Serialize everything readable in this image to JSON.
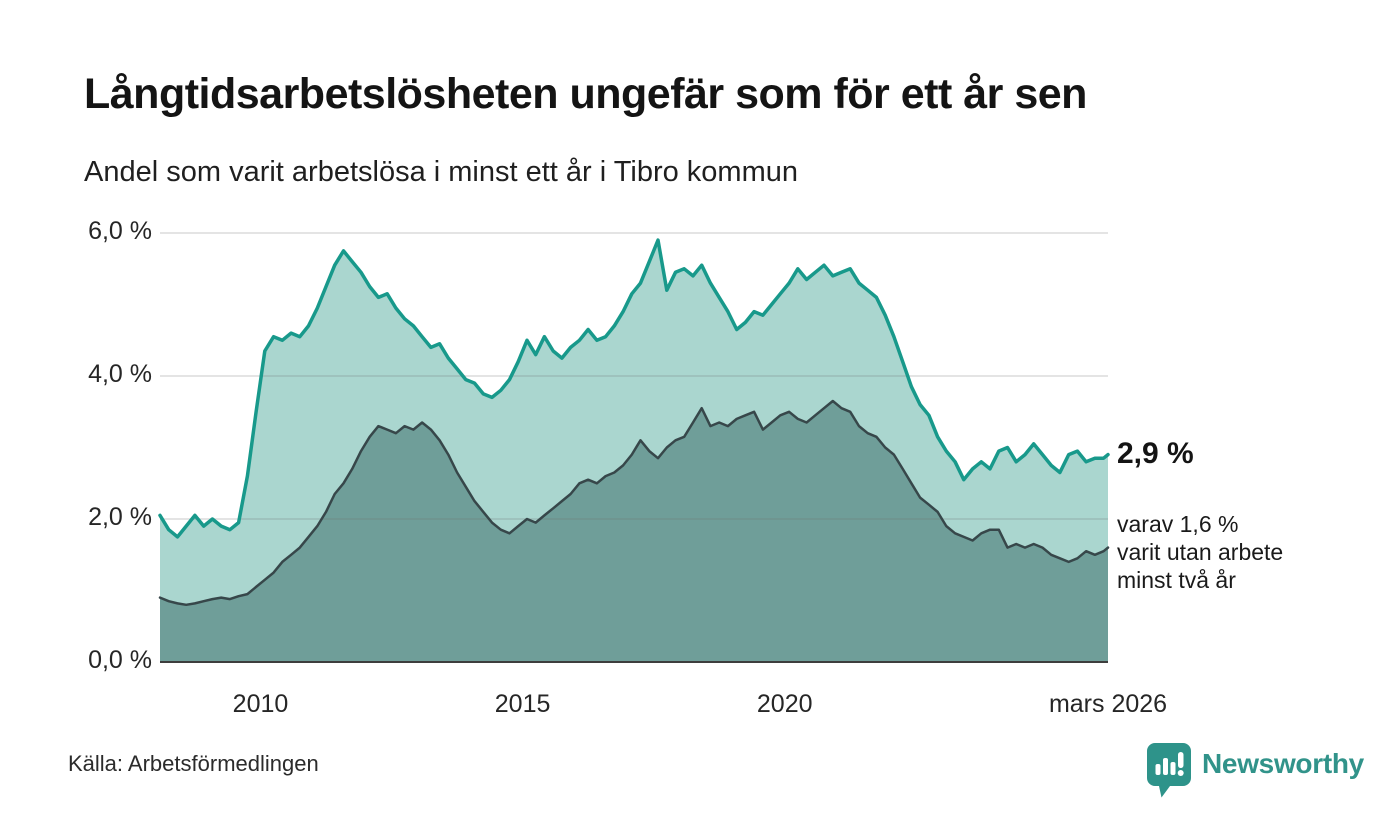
{
  "header": {
    "title": "Långtidsarbetslösheten ungefär som för ett år sen",
    "subtitle": "Andel som varit arbetslösa i minst ett år i Tibro kommun"
  },
  "annotation": {
    "value": "2,9 %",
    "detail_lines": [
      "varav 1,6 %",
      "varit utan arbete",
      "minst två år"
    ]
  },
  "footer": {
    "source": "Källa: Arbetsförmedlingen",
    "brand": "Newsworthy",
    "brand_icon": "newsworthy-bubble-chart-icon"
  },
  "colors": {
    "background": "#ffffff",
    "title_text": "#141414",
    "axis_text": "#262626",
    "gridline": "rgba(110,110,110,0.25)",
    "baseline": "#3d3d3d",
    "brand_teal": "#2e938a"
  },
  "chart_data": {
    "type": "area",
    "title": "Långtidsarbetslösheten ungefär som för ett år sen",
    "subtitle": "Andel som varit arbetslösa i minst ett år i Tibro kommun",
    "unit": "%",
    "xlim": [
      2008.083,
      2026.167
    ],
    "ylim": [
      0,
      6.0
    ],
    "x_start": 2008.083,
    "x_step": 0.16667,
    "x_end": 2026.167,
    "grid": true,
    "yticks": [
      {
        "label": "0,0 %",
        "value": 0
      },
      {
        "label": "2,0 %",
        "value": 2
      },
      {
        "label": "4,0 %",
        "value": 4
      },
      {
        "label": "6,0 %",
        "value": 6
      }
    ],
    "xticks": [
      {
        "label": "2010",
        "value": 2010.0
      },
      {
        "label": "2015",
        "value": 2015.0
      },
      {
        "label": "2020",
        "value": 2020.0
      },
      {
        "label": "mars 2026",
        "value": 2026.167
      }
    ],
    "series": [
      {
        "name": "Arbetslösa minst ett år",
        "end_label": "2,9 %",
        "end_value": 2.9,
        "line_color": "#18998b",
        "fill_color": "#aad6cf",
        "line_width": 3.5,
        "values": [
          2.05,
          1.85,
          1.75,
          1.9,
          2.05,
          1.9,
          2.0,
          1.9,
          1.85,
          1.95,
          2.6,
          3.5,
          4.35,
          4.55,
          4.5,
          4.6,
          4.55,
          4.7,
          4.95,
          5.25,
          5.55,
          5.75,
          5.6,
          5.45,
          5.25,
          5.1,
          5.15,
          4.95,
          4.8,
          4.7,
          4.55,
          4.4,
          4.45,
          4.25,
          4.1,
          3.95,
          3.9,
          3.75,
          3.7,
          3.8,
          3.95,
          4.2,
          4.5,
          4.3,
          4.55,
          4.35,
          4.25,
          4.4,
          4.5,
          4.65,
          4.5,
          4.55,
          4.7,
          4.9,
          5.15,
          5.3,
          5.6,
          5.9,
          5.2,
          5.45,
          5.5,
          5.4,
          5.55,
          5.3,
          5.1,
          4.9,
          4.65,
          4.75,
          4.9,
          4.85,
          5.0,
          5.15,
          5.3,
          5.5,
          5.35,
          5.45,
          5.55,
          5.4,
          5.45,
          5.5,
          5.3,
          5.2,
          5.1,
          4.85,
          4.55,
          4.2,
          3.85,
          3.6,
          3.45,
          3.15,
          2.95,
          2.8,
          2.55,
          2.7,
          2.8,
          2.7,
          2.95,
          3.0,
          2.8,
          2.9,
          3.05,
          2.9,
          2.75,
          2.65,
          2.9,
          2.95,
          2.8,
          2.85,
          2.85,
          2.9
        ]
      },
      {
        "name": "varav arbetslösa minst två år",
        "end_label": "1,6 %",
        "end_value": 1.6,
        "line_color": "#37474a",
        "fill_color": "#6f9e99",
        "line_width": 2.5,
        "values": [
          0.9,
          0.85,
          0.82,
          0.8,
          0.82,
          0.85,
          0.88,
          0.9,
          0.88,
          0.92,
          0.95,
          1.05,
          1.15,
          1.25,
          1.4,
          1.5,
          1.6,
          1.75,
          1.9,
          2.1,
          2.35,
          2.5,
          2.7,
          2.95,
          3.15,
          3.3,
          3.25,
          3.2,
          3.3,
          3.25,
          3.35,
          3.25,
          3.1,
          2.9,
          2.65,
          2.45,
          2.25,
          2.1,
          1.95,
          1.85,
          1.8,
          1.9,
          2.0,
          1.95,
          2.05,
          2.15,
          2.25,
          2.35,
          2.5,
          2.55,
          2.5,
          2.6,
          2.65,
          2.75,
          2.9,
          3.1,
          2.95,
          2.85,
          3.0,
          3.1,
          3.15,
          3.35,
          3.55,
          3.3,
          3.35,
          3.3,
          3.4,
          3.45,
          3.5,
          3.25,
          3.35,
          3.45,
          3.5,
          3.4,
          3.35,
          3.45,
          3.55,
          3.65,
          3.55,
          3.5,
          3.3,
          3.2,
          3.15,
          3.0,
          2.9,
          2.7,
          2.5,
          2.3,
          2.2,
          2.1,
          1.9,
          1.8,
          1.75,
          1.7,
          1.8,
          1.85,
          1.85,
          1.6,
          1.65,
          1.6,
          1.65,
          1.6,
          1.5,
          1.45,
          1.4,
          1.45,
          1.55,
          1.5,
          1.55,
          1.6
        ]
      }
    ]
  }
}
